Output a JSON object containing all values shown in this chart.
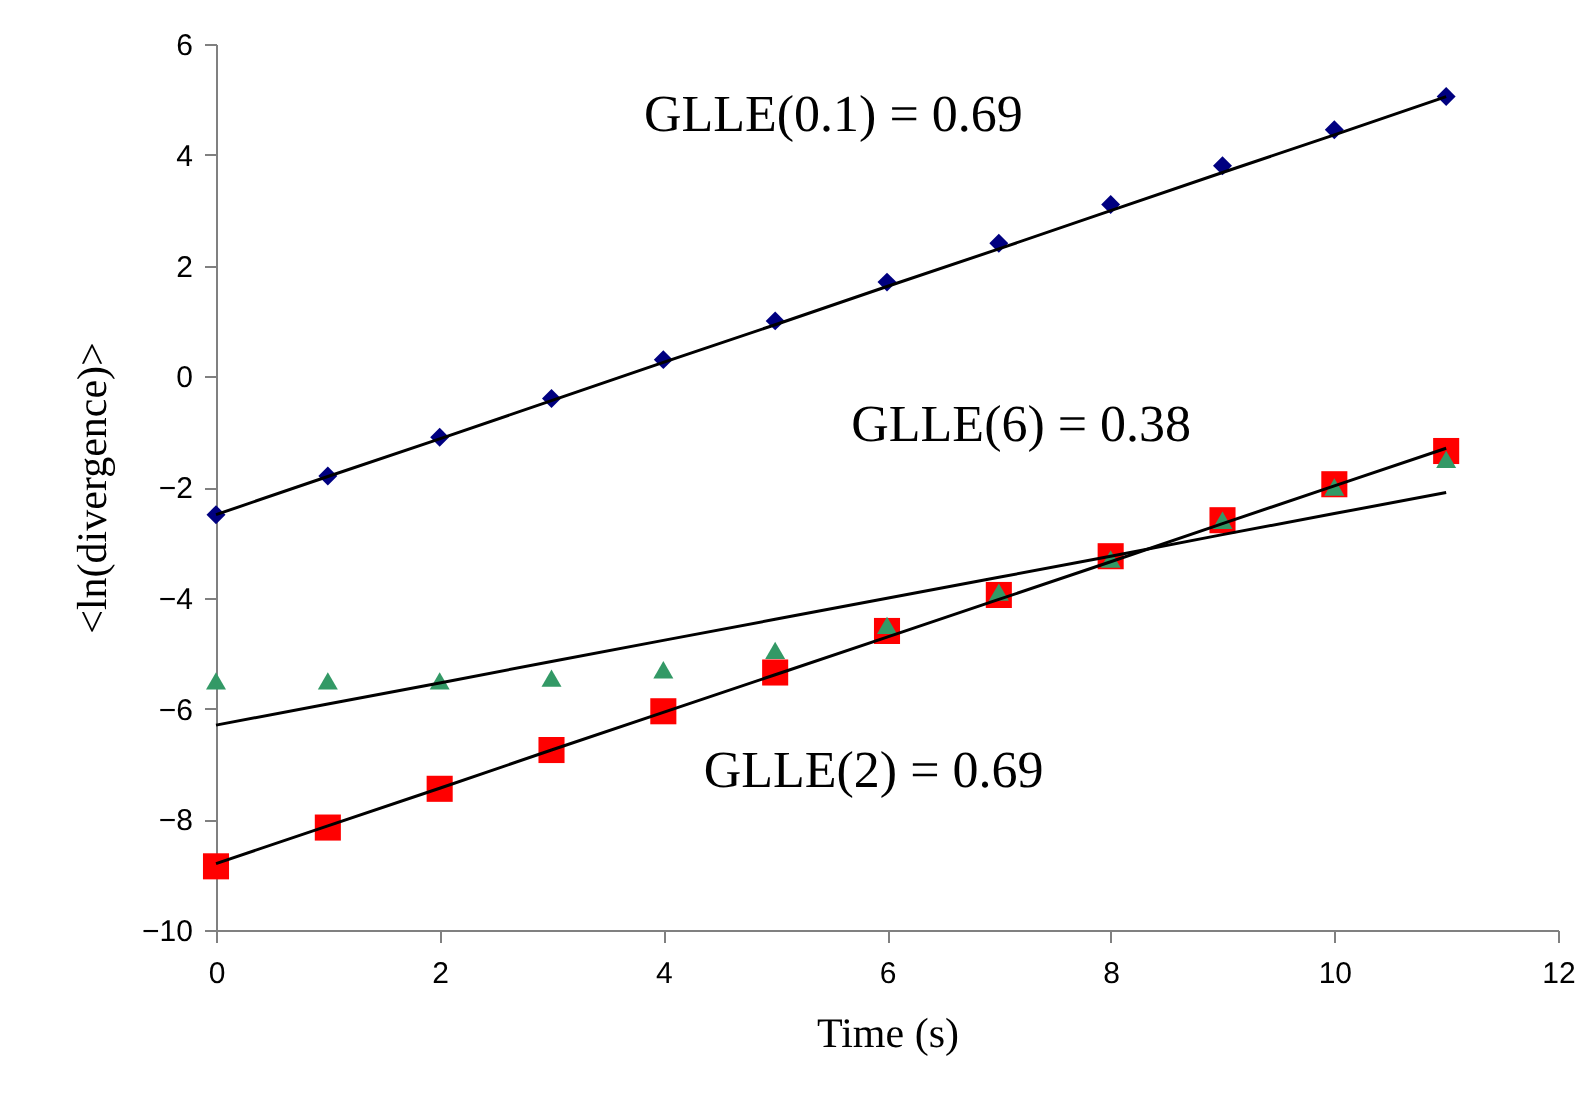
{
  "chart_data": {
    "type": "scatter",
    "xlabel": "Time (s)",
    "ylabel": "<ln(divergence)>",
    "x": [
      0,
      1,
      2,
      3,
      4,
      5,
      6,
      7,
      8,
      9,
      10,
      11
    ],
    "series": [
      {
        "marker": "diamond",
        "color": "#000080",
        "values": [
          -2.5,
          -1.8,
          -1.1,
          -0.4,
          0.3,
          1.0,
          1.7,
          2.4,
          3.1,
          3.8,
          4.45,
          5.05
        ]
      },
      {
        "marker": "square",
        "color": "#ff0000",
        "values": [
          -8.85,
          -8.15,
          -7.45,
          -6.75,
          -6.05,
          -5.35,
          -4.6,
          -3.95,
          -3.25,
          -2.6,
          -1.95,
          -1.35
        ]
      },
      {
        "marker": "triangle",
        "color": "#339966",
        "values": [
          -5.5,
          -5.5,
          -5.5,
          -5.45,
          -5.3,
          -4.95,
          -4.5,
          -3.9,
          -3.3,
          -2.6,
          -2.0,
          -1.5
        ]
      },
      {
        "type": "line",
        "color": "#000000",
        "values": [
          -2.5,
          -1.81,
          -1.13,
          -0.44,
          0.25,
          0.93,
          1.62,
          2.3,
          2.99,
          3.68,
          4.36,
          5.05
        ]
      },
      {
        "type": "line",
        "color": "#000000",
        "values": [
          -8.8,
          -8.12,
          -7.44,
          -6.75,
          -6.07,
          -5.39,
          -4.71,
          -4.03,
          -3.35,
          -2.66,
          -1.98,
          -1.3
        ]
      },
      {
        "type": "line",
        "color": "#000000",
        "values": [
          -6.3,
          -5.92,
          -5.54,
          -5.15,
          -4.77,
          -4.39,
          -4.01,
          -3.63,
          -3.25,
          -2.86,
          -2.48,
          -2.1
        ]
      }
    ],
    "annotations": [
      "GLLE(0.1) = 0.69",
      "GLLE(6) = 0.38",
      "GLLE(2) = 0.69"
    ],
    "xlim": [
      0,
      12
    ],
    "xticks": [
      0,
      2,
      4,
      6,
      8,
      10,
      12
    ],
    "ylim": [
      -10,
      6
    ],
    "yticks": [
      -10,
      -8,
      -6,
      -4,
      -2,
      0,
      2,
      4,
      6
    ],
    "grid": false
  }
}
